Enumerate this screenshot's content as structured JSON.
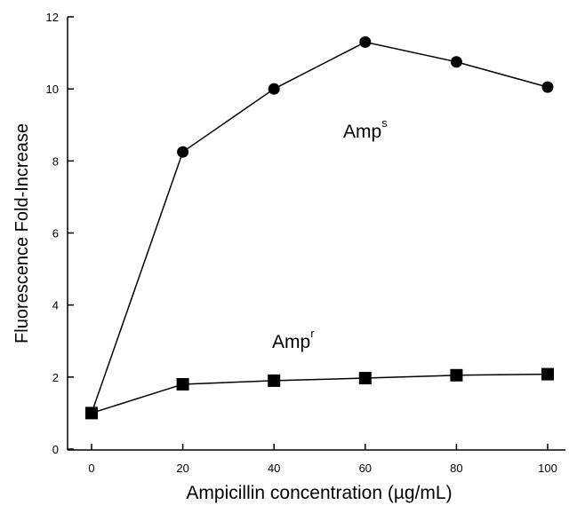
{
  "chart_data": {
    "type": "line",
    "title": "",
    "xlabel": "Ampicillin concentration (µg/mL)",
    "ylabel": "Fluorescence Fold-Increase",
    "xlim": [
      0,
      100
    ],
    "ylim": [
      0,
      12
    ],
    "x_ticks": [
      0,
      20,
      40,
      60,
      80,
      100
    ],
    "y_ticks": [
      0,
      2,
      4,
      6,
      8,
      10,
      12
    ],
    "x": [
      0,
      20,
      40,
      60,
      80,
      100
    ],
    "series": [
      {
        "name": "Amp",
        "name_sup": "s",
        "marker": "circle",
        "values": [
          1.0,
          8.25,
          10.0,
          11.3,
          10.75,
          10.05
        ]
      },
      {
        "name": "Amp",
        "name_sup": "r",
        "marker": "square",
        "values": [
          1.0,
          1.8,
          1.9,
          1.97,
          2.05,
          2.08
        ]
      }
    ],
    "grid": false,
    "legend": "none"
  }
}
